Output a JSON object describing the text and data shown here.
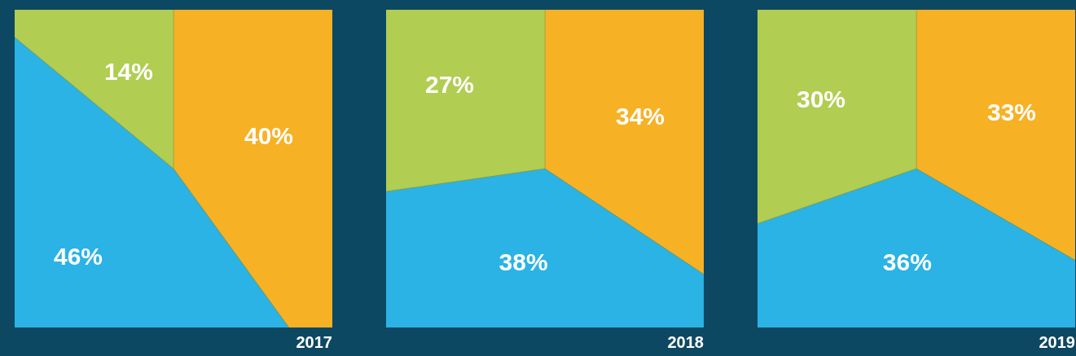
{
  "chart_data": [
    {
      "type": "pie",
      "title": "2017",
      "categories": [
        null,
        null,
        null
      ],
      "values": [
        40,
        46,
        14
      ],
      "value_labels": [
        "40%",
        "46%",
        "14%"
      ],
      "colors": [
        "#f7b125",
        "#2ab3e4",
        "#b1cd52"
      ],
      "legend": false
    },
    {
      "type": "pie",
      "title": "2018",
      "categories": [
        null,
        null,
        null
      ],
      "values": [
        34,
        38,
        27
      ],
      "value_labels": [
        "34%",
        "38%",
        "27%"
      ],
      "colors": [
        "#f7b125",
        "#2ab3e4",
        "#b1cd52"
      ],
      "legend": false
    },
    {
      "type": "pie",
      "title": "2019",
      "categories": [
        null,
        null,
        null
      ],
      "values": [
        33,
        36,
        30
      ],
      "value_labels": [
        "33%",
        "36%",
        "30%"
      ],
      "colors": [
        "#f7b125",
        "#2ab3e4",
        "#b1cd52"
      ],
      "legend": false
    }
  ]
}
